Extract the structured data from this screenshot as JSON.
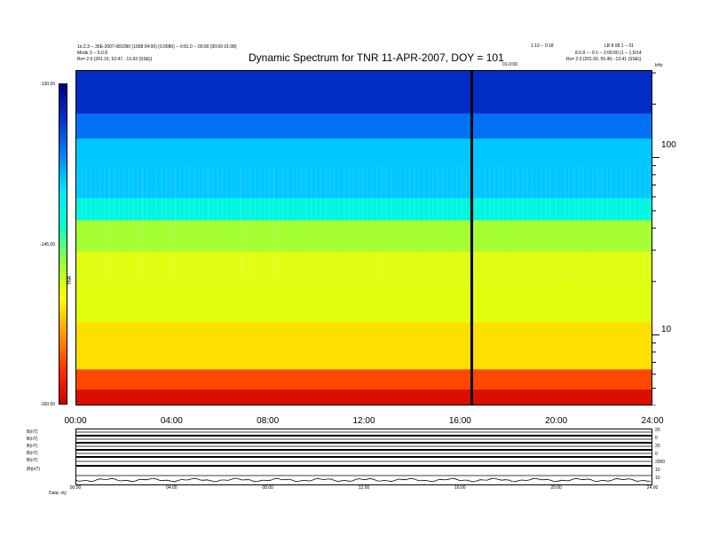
{
  "header": {
    "title": "Dynamic Spectrum for TNR 11-APR-2007, DOY = 101",
    "left_line1": "1o:2.3 -- 30E-2007-081090 (1008 04:00) (0.0080) -- 0:81.0 -- 00:00 (00:00 01:08)",
    "left_line2": "Mode 3 -- 5.0 8",
    "left_line3": "Rs=   2.0 (201.15, 52.47, -13.93 (SSE))",
    "center_right_line1": "1:10 -- 0:18",
    "center_right_line2": "01-0:00",
    "right_line1": "LB 8 08 1 -- 01",
    "right_line2": "8.6.8 --- 0:1 -- 2:00:00 (1 -- 1.5/14",
    "right_line3": "Rs=   2.0 (201.93, 55.49, -13.41 (SSE))"
  },
  "colorbar": {
    "top_label": "-130.00",
    "mid_label": "-145.00",
    "bottom_label": "-160.00",
    "axis_label": "TNR",
    "colors": [
      "#cc0000",
      "#ff3300",
      "#ff9900",
      "#ffff00",
      "#99ff33",
      "#00ffcc",
      "#00e5ff",
      "#0080ff",
      "#0033cc",
      "#000080"
    ]
  },
  "chart_data": {
    "type": "heatmap",
    "title": "Dynamic Spectrum for TNR 11-APR-2007, DOY = 101",
    "xlabel": "",
    "ylabel": "kHz",
    "x_ticks": [
      "00:00",
      "04:00",
      "08:00",
      "12:00",
      "16:00",
      "20:00",
      "24:00"
    ],
    "x_range_hours": [
      0,
      24
    ],
    "y_scale": "log",
    "y_ticks": [
      100,
      10
    ],
    "y_range_khz": [
      4,
      311
    ],
    "colorbar_range_db": [
      -160,
      -130
    ],
    "colorbar_ticks": [
      -130,
      -145,
      -160
    ],
    "event_marker_hour": 16.45,
    "bands_khz": [
      {
        "from": 4,
        "to": 5,
        "level_db": -159
      },
      {
        "from": 5,
        "to": 6.5,
        "level_db": -156
      },
      {
        "from": 6.5,
        "to": 12,
        "level_db": -151
      },
      {
        "from": 12,
        "to": 30,
        "level_db": -149
      },
      {
        "from": 30,
        "to": 45,
        "level_db": -147
      },
      {
        "from": 45,
        "to": 60,
        "level_db": -142
      },
      {
        "from": 60,
        "to": 130,
        "level_db": -139
      },
      {
        "from": 130,
        "to": 180,
        "level_db": -136
      },
      {
        "from": 180,
        "to": 311,
        "level_db": -133
      }
    ],
    "grid": false
  },
  "axis": {
    "y_unit_top": "kHz",
    "y_tick_100": "100",
    "y_tick_10": "10"
  },
  "bottom_panel": {
    "row_labels": [
      "B(nT)",
      "B(nT)",
      "B(nT)",
      "B(nT)",
      "B(nT)",
      "|B|(nT)"
    ],
    "right_labels": [
      "20",
      "0",
      "20",
      "0",
      "2000",
      "10",
      "10"
    ],
    "x_ticks": [
      "00:00",
      "04:00",
      "08:00",
      "12:00",
      "16:00",
      "20:00",
      "24:00"
    ],
    "footer_label": "Data:   x/y"
  }
}
